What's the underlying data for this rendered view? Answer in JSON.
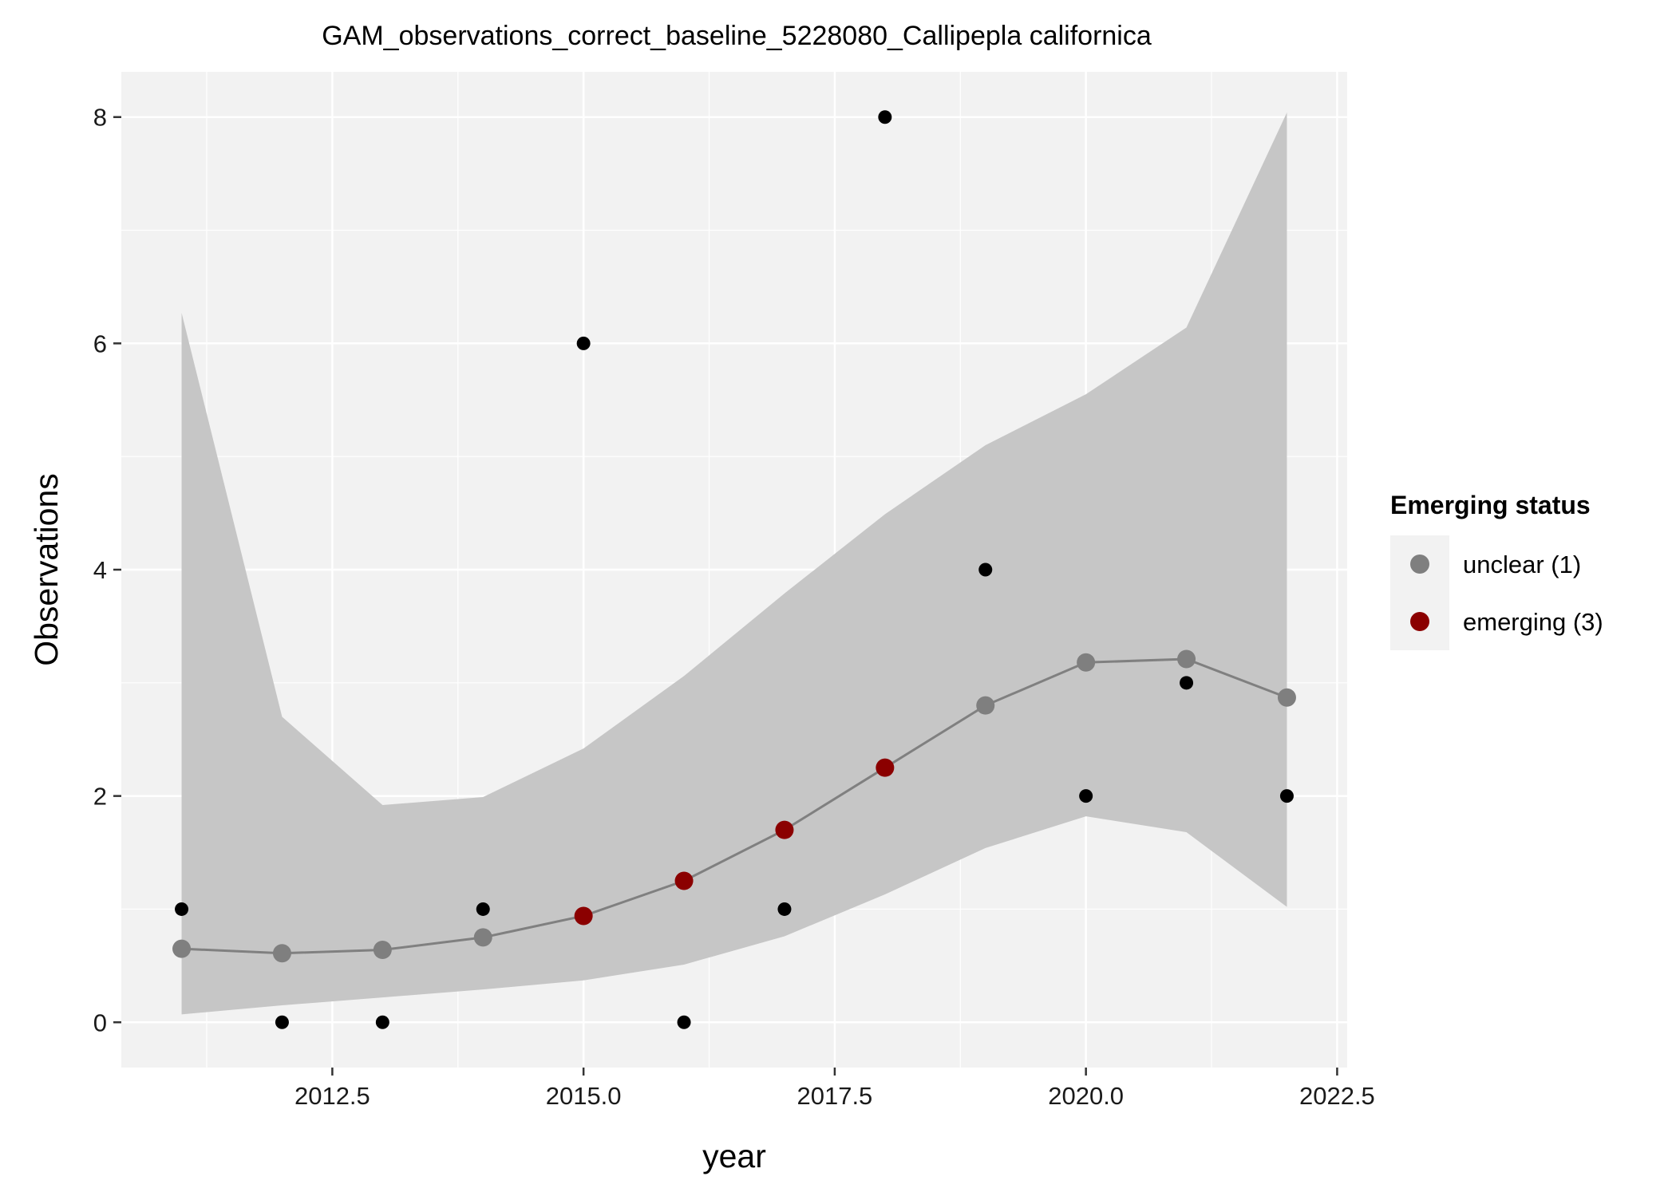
{
  "chart_data": {
    "type": "scatter",
    "title": "GAM_observations_correct_baseline_5228080_Callipepla californica",
    "xlabel": "year",
    "ylabel": "Observations",
    "xlim": [
      2010.4,
      2022.6
    ],
    "ylim": [
      -0.4,
      8.4
    ],
    "x_ticks": [
      2012.5,
      2015.0,
      2017.5,
      2020.0,
      2022.5
    ],
    "x_tick_labels": [
      "2012.5",
      "2015.0",
      "2017.5",
      "2020.0",
      "2022.5"
    ],
    "y_ticks": [
      0,
      2,
      4,
      6,
      8
    ],
    "y_tick_labels": [
      "0",
      "2",
      "4",
      "6",
      "8"
    ],
    "grid": true,
    "legend": {
      "title": "Emerging status",
      "placement": "right",
      "entries": [
        {
          "label": "unclear (1)",
          "color": "#7f7f7f"
        },
        {
          "label": "emerging (3)",
          "color": "#8b0000"
        }
      ]
    },
    "observations": {
      "x": [
        2011,
        2012,
        2013,
        2014,
        2015,
        2016,
        2017,
        2018,
        2019,
        2020,
        2021,
        2022
      ],
      "y": [
        1,
        0,
        0,
        1,
        6,
        0,
        1,
        8,
        4,
        2,
        3,
        2
      ]
    },
    "fit": {
      "x": [
        2011,
        2012,
        2013,
        2014,
        2015,
        2016,
        2017,
        2018,
        2019,
        2020,
        2021,
        2022
      ],
      "y": [
        0.65,
        0.61,
        0.64,
        0.75,
        0.94,
        1.25,
        1.7,
        2.25,
        2.8,
        3.18,
        3.21,
        2.87
      ],
      "lower": [
        0.07,
        0.15,
        0.22,
        0.29,
        0.37,
        0.51,
        0.76,
        1.13,
        1.54,
        1.82,
        1.68,
        1.02
      ],
      "upper": [
        6.27,
        2.7,
        1.92,
        1.99,
        2.42,
        3.06,
        3.79,
        4.49,
        5.1,
        5.55,
        6.14,
        8.04
      ],
      "status": [
        "unclear",
        "unclear",
        "unclear",
        "unclear",
        "emerging",
        "emerging",
        "emerging",
        "emerging",
        "unclear",
        "unclear",
        "unclear",
        "unclear"
      ]
    },
    "colors": {
      "panel_background": "#f2f2f2",
      "grid": "#ffffff",
      "ribbon": "#c6c6c6",
      "fit_line": "#808080",
      "unclear": "#7f7f7f",
      "emerging": "#8b0000",
      "observation": "#000000"
    }
  }
}
